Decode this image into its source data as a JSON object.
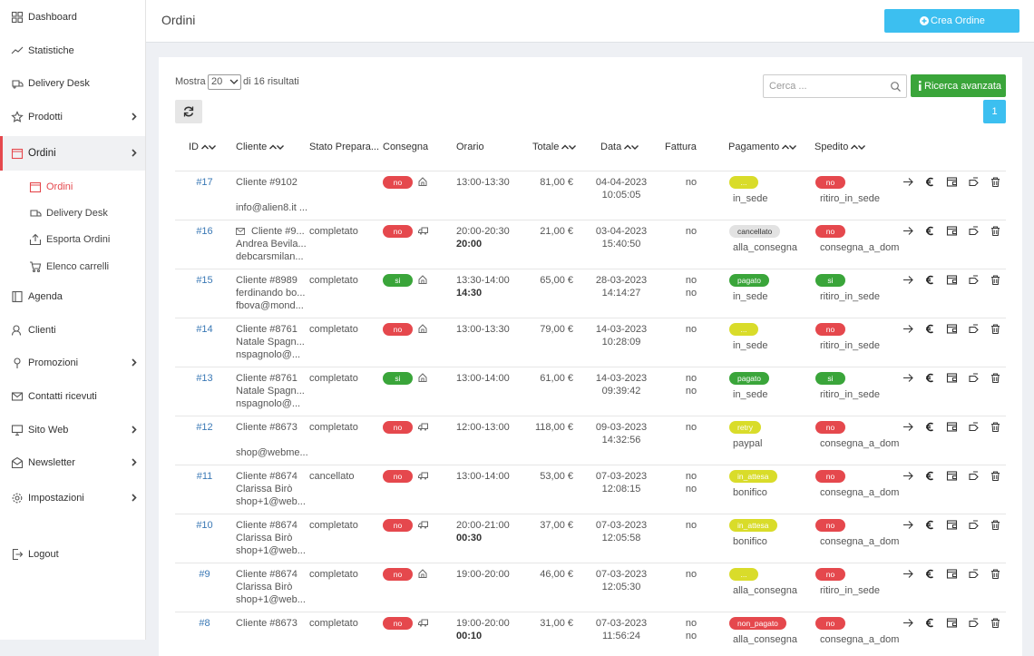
{
  "sidebar": {
    "items": [
      {
        "label": "Dashboard",
        "arrow": false
      },
      {
        "label": "Statistiche",
        "arrow": false
      },
      {
        "label": "Delivery Desk",
        "arrow": false
      },
      {
        "label": "Prodotti",
        "arrow": true
      },
      {
        "label": "Ordini",
        "arrow": true,
        "active": true,
        "children": [
          {
            "label": "Ordini",
            "active": true
          },
          {
            "label": "Delivery Desk"
          },
          {
            "label": "Esporta Ordini"
          },
          {
            "label": "Elenco carrelli"
          }
        ]
      },
      {
        "label": "Agenda",
        "arrow": false
      },
      {
        "label": "Clienti",
        "arrow": false
      },
      {
        "label": "Promozioni",
        "arrow": true
      },
      {
        "label": "Contatti ricevuti",
        "arrow": false
      },
      {
        "label": "Sito Web",
        "arrow": true
      },
      {
        "label": "Newsletter",
        "arrow": true
      },
      {
        "label": "Impostazioni",
        "arrow": true
      }
    ],
    "logout": "Logout"
  },
  "header": {
    "title": "Ordini",
    "button": "Crea Ordine"
  },
  "toolbar": {
    "show_label": "Mostra",
    "page_size": "20",
    "results": "di 16 risultati",
    "search_placeholder": "Cerca ...",
    "advanced_search": "Ricerca avanzata",
    "page": "1"
  },
  "table": {
    "columns": [
      {
        "label": "ID",
        "sortable": true
      },
      {
        "label": "Cliente",
        "sortable": true
      },
      {
        "label": "Stato Prepara...",
        "sortable": false
      },
      {
        "label": "Consegna",
        "sortable": false
      },
      {
        "label": "Orario",
        "sortable": false
      },
      {
        "label": "Totale",
        "sortable": true
      },
      {
        "label": "Data",
        "sortable": true
      },
      {
        "label": "Fattura",
        "sortable": false
      },
      {
        "label": "Pagamento",
        "sortable": true
      },
      {
        "label": "Spedito",
        "sortable": true
      }
    ],
    "rows": [
      {
        "id": "#17",
        "cliente": [
          "Cliente #9102",
          null,
          "info@alien8.it ..."
        ],
        "stato": null,
        "consegna": {
          "text": "no",
          "color": "#e5484d",
          "icon": "home"
        },
        "orario": [
          "13:00-13:30"
        ],
        "totale": "81,00 €",
        "data": [
          "04-04-2023",
          "10:05:05"
        ],
        "fattura": [
          "no"
        ],
        "pagamento": {
          "badge": "...",
          "color": "#d9dc2a",
          "text": "in_sede"
        },
        "spedito": {
          "badge": "no",
          "color": "#e5484d",
          "text": "ritiro_in_sede"
        }
      },
      {
        "id": "#16",
        "mail": true,
        "cliente": [
          "Cliente #9...",
          "Andrea Bevila...",
          "debcarsmilan..."
        ],
        "stato": "completato",
        "consegna": {
          "text": "no",
          "color": "#e5484d",
          "icon": "delivery"
        },
        "orario": [
          "20:00-20:30",
          "20:00"
        ],
        "totale": "21,00 €",
        "data": [
          "03-04-2023",
          "15:40:50"
        ],
        "fattura": [
          "no"
        ],
        "pagamento": {
          "badge": "cancellato",
          "color": "#e2e2e2",
          "text": "alla_consegna"
        },
        "spedito": {
          "badge": "no",
          "color": "#e5484d",
          "text": "consegna_a_domic"
        }
      },
      {
        "id": "#15",
        "cliente": [
          "Cliente #8989",
          "ferdinando bo...",
          "fbova@mond..."
        ],
        "stato": "completato",
        "consegna": {
          "text": "si",
          "color": "#3aa53a",
          "icon": "home"
        },
        "orario": [
          "13:30-14:00",
          "14:30"
        ],
        "totale": "65,00 €",
        "data": [
          "28-03-2023",
          "14:14:27"
        ],
        "fattura": [
          "no",
          "no"
        ],
        "pagamento": {
          "badge": "pagato",
          "color": "#3aa53a",
          "text": "in_sede"
        },
        "spedito": {
          "badge": "si",
          "color": "#3aa53a",
          "text": "ritiro_in_sede"
        }
      },
      {
        "id": "#14",
        "cliente": [
          "Cliente #8761",
          "Natale Spagn...",
          "nspagnolo@..."
        ],
        "stato": "completato",
        "consegna": {
          "text": "no",
          "color": "#e5484d",
          "icon": "home"
        },
        "orario": [
          "13:00-13:30"
        ],
        "totale": "79,00 €",
        "data": [
          "14-03-2023",
          "10:28:09"
        ],
        "fattura": [
          "no"
        ],
        "pagamento": {
          "badge": "...",
          "color": "#d9dc2a",
          "text": "in_sede"
        },
        "spedito": {
          "badge": "no",
          "color": "#e5484d",
          "text": "ritiro_in_sede"
        }
      },
      {
        "id": "#13",
        "cliente": [
          "Cliente #8761",
          "Natale Spagn...",
          "nspagnolo@..."
        ],
        "stato": "completato",
        "consegna": {
          "text": "si",
          "color": "#3aa53a",
          "icon": "home"
        },
        "orario": [
          "13:00-14:00"
        ],
        "totale": "61,00 €",
        "data": [
          "14-03-2023",
          "09:39:42"
        ],
        "fattura": [
          "no",
          "no"
        ],
        "pagamento": {
          "badge": "pagato",
          "color": "#3aa53a",
          "text": "in_sede"
        },
        "spedito": {
          "badge": "si",
          "color": "#3aa53a",
          "text": "ritiro_in_sede"
        }
      },
      {
        "id": "#12",
        "cliente": [
          "Cliente #8673",
          null,
          "shop@webme..."
        ],
        "stato": "completato",
        "consegna": {
          "text": "no",
          "color": "#e5484d",
          "icon": "delivery"
        },
        "orario": [
          "12:00-13:00"
        ],
        "totale": "118,00 €",
        "data": [
          "09-03-2023",
          "14:32:56"
        ],
        "fattura": [
          "no"
        ],
        "pagamento": {
          "badge": "retry",
          "color": "#d9dc2a",
          "text": "paypal"
        },
        "spedito": {
          "badge": "no",
          "color": "#e5484d",
          "text": "consegna_a_domic"
        }
      },
      {
        "id": "#11",
        "cliente": [
          "Cliente #8674",
          "Clarissa Birò",
          "shop+1@web..."
        ],
        "stato": "cancellato",
        "consegna": {
          "text": "no",
          "color": "#e5484d",
          "icon": "delivery"
        },
        "orario": [
          "13:00-14:00"
        ],
        "totale": "53,00 €",
        "data": [
          "07-03-2023",
          "12:08:15"
        ],
        "fattura": [
          "no",
          "no"
        ],
        "pagamento": {
          "badge": "in_attesa",
          "color": "#d9dc2a",
          "text": "bonifico"
        },
        "spedito": {
          "badge": "no",
          "color": "#e5484d",
          "text": "consegna_a_domic"
        }
      },
      {
        "id": "#10",
        "cliente": [
          "Cliente #8674",
          "Clarissa Birò",
          "shop+1@web..."
        ],
        "stato": "completato",
        "consegna": {
          "text": "no",
          "color": "#e5484d",
          "icon": "delivery"
        },
        "orario": [
          "20:00-21:00",
          "00:30"
        ],
        "totale": "37,00 €",
        "data": [
          "07-03-2023",
          "12:05:58"
        ],
        "fattura": [
          "no"
        ],
        "pagamento": {
          "badge": "in_attesa",
          "color": "#d9dc2a",
          "text": "bonifico"
        },
        "spedito": {
          "badge": "no",
          "color": "#e5484d",
          "text": "consegna_a_domic"
        }
      },
      {
        "id": "#9",
        "cliente": [
          "Cliente #8674",
          "Clarissa Birò",
          "shop+1@web..."
        ],
        "stato": "completato",
        "consegna": {
          "text": "no",
          "color": "#e5484d",
          "icon": "home"
        },
        "orario": [
          "19:00-20:00"
        ],
        "totale": "46,00 €",
        "data": [
          "07-03-2023",
          "12:05:30"
        ],
        "fattura": [
          "no"
        ],
        "pagamento": {
          "badge": "...",
          "color": "#d9dc2a",
          "text": "alla_consegna"
        },
        "spedito": {
          "badge": "no",
          "color": "#e5484d",
          "text": "ritiro_in_sede"
        }
      },
      {
        "id": "#8",
        "cliente": [
          "Cliente #8673"
        ],
        "stato": "completato",
        "consegna": {
          "text": "no",
          "color": "#e5484d",
          "icon": "delivery"
        },
        "orario": [
          "19:00-20:00",
          "00:10"
        ],
        "totale": "31,00 €",
        "data": [
          "07-03-2023",
          "11:56:24"
        ],
        "fattura": [
          "no",
          "no"
        ],
        "pagamento": {
          "badge": "non_pagato",
          "color": "#e5484d",
          "text": "alla_consegna"
        },
        "spedito": {
          "badge": "no",
          "color": "#e5484d",
          "text": "consegna_a_domic"
        }
      }
    ]
  }
}
